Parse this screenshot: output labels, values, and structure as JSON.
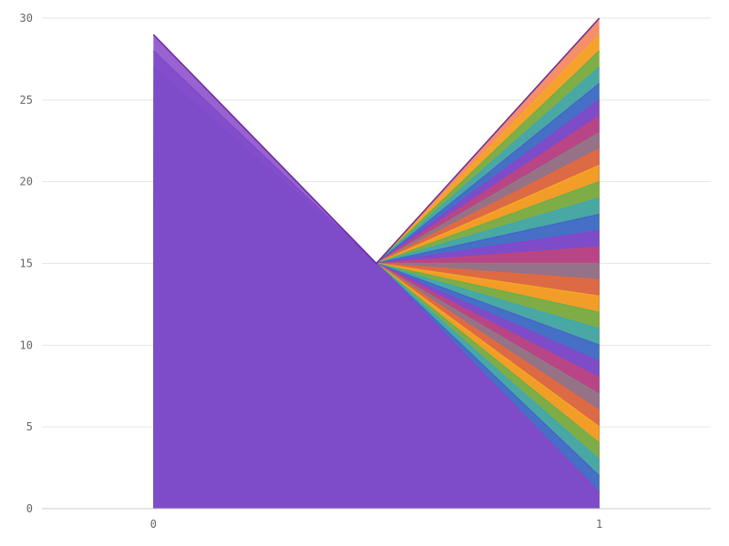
{
  "chart_data": {
    "type": "area",
    "title": "",
    "xlabel": "",
    "ylabel": "",
    "x": [
      0,
      1
    ],
    "x_tick_labels": [
      "0",
      "1"
    ],
    "xlim": [
      -0.25,
      1.25
    ],
    "ylim": [
      0,
      30
    ],
    "y_ticks": [
      0,
      5,
      10,
      15,
      20,
      25,
      30
    ],
    "y_tick_labels": [
      "0",
      "5",
      "10",
      "15",
      "20",
      "25",
      "30"
    ],
    "grid": "horizontal",
    "legend": "none",
    "fill_opacity": 0.85,
    "palette": [
      "#f47a4f",
      "#f5a623",
      "#6ab04c",
      "#3fa7b5",
      "#4466cc",
      "#8845c9",
      "#c2447a",
      "#8e7a86",
      "#e9683a"
    ],
    "series": [
      {
        "values": [
          29,
          1
        ],
        "color": "#8845c9"
      },
      {
        "values": [
          28,
          2
        ],
        "color": "#4466cc"
      },
      {
        "values": [
          27,
          3
        ],
        "color": "#3fa7b5"
      },
      {
        "values": [
          26,
          4
        ],
        "color": "#6ab04c"
      },
      {
        "values": [
          25,
          5
        ],
        "color": "#f5a623"
      },
      {
        "values": [
          24,
          6
        ],
        "color": "#e9683a"
      },
      {
        "values": [
          23,
          7
        ],
        "color": "#8e7a86"
      },
      {
        "values": [
          22,
          8
        ],
        "color": "#c2447a"
      },
      {
        "values": [
          21,
          9
        ],
        "color": "#8845c9"
      },
      {
        "values": [
          20,
          10
        ],
        "color": "#4466cc"
      },
      {
        "values": [
          19,
          11
        ],
        "color": "#3fa7b5"
      },
      {
        "values": [
          18,
          12
        ],
        "color": "#6ab04c"
      },
      {
        "values": [
          17,
          13
        ],
        "color": "#f5a623"
      },
      {
        "values": [
          16,
          14
        ],
        "color": "#e9683a"
      },
      {
        "values": [
          15,
          15
        ],
        "color": "#8e7a86"
      },
      {
        "values": [
          14,
          16
        ],
        "color": "#c2447a"
      },
      {
        "values": [
          13,
          17
        ],
        "color": "#8845c9"
      },
      {
        "values": [
          12,
          18
        ],
        "color": "#4466cc"
      },
      {
        "values": [
          11,
          19
        ],
        "color": "#3fa7b5"
      },
      {
        "values": [
          10,
          20
        ],
        "color": "#6ab04c"
      },
      {
        "values": [
          9,
          21
        ],
        "color": "#f5a623"
      },
      {
        "values": [
          8,
          22
        ],
        "color": "#e9683a"
      },
      {
        "values": [
          7,
          23
        ],
        "color": "#8e7a86"
      },
      {
        "values": [
          6,
          24
        ],
        "color": "#c2447a"
      },
      {
        "values": [
          5,
          25
        ],
        "color": "#8845c9"
      },
      {
        "values": [
          4,
          26
        ],
        "color": "#4466cc"
      },
      {
        "values": [
          3,
          27
        ],
        "color": "#3fa7b5"
      },
      {
        "values": [
          2,
          28
        ],
        "color": "#6ab04c"
      },
      {
        "values": [
          1,
          29
        ],
        "color": "#f5a623"
      },
      {
        "values": [
          0,
          30
        ],
        "color": "#f47a4f"
      }
    ]
  }
}
